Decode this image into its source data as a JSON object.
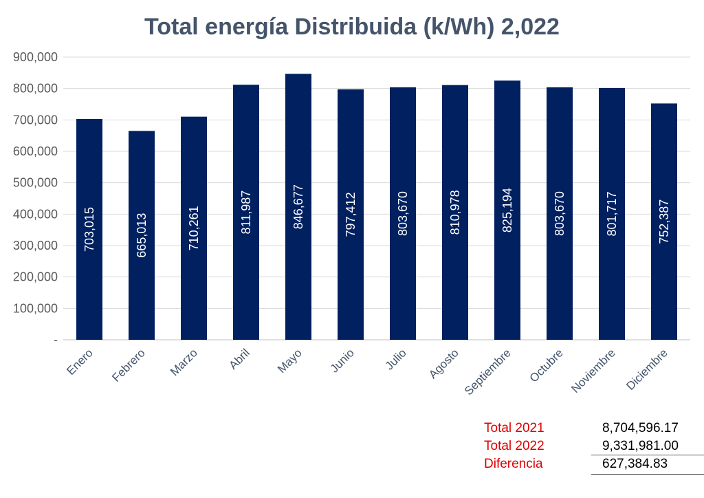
{
  "chart_data": {
    "type": "bar",
    "title": "Total energía Distribuida (k/Wh) 2,022",
    "categories": [
      "Enero",
      "Febrero",
      "Marzo",
      "Abril",
      "Mayo",
      "Junio",
      "Julio",
      "Agosto",
      "Septiembre",
      "Octubre",
      "Noviembre",
      "Diciembre"
    ],
    "values": [
      703015,
      665013,
      710261,
      811987,
      846677,
      797412,
      803670,
      810978,
      825194,
      803670,
      801717,
      752387
    ],
    "data_labels": [
      "703,015",
      "665,013",
      "710,261",
      "811,987",
      "846,677",
      "797,412",
      "803,670",
      "810,978",
      "825,194",
      "803,670",
      "801,717",
      "752,387"
    ],
    "yticks": [
      "-",
      "100,000",
      "200,000",
      "300,000",
      "400,000",
      "500,000",
      "600,000",
      "700,000",
      "800,000",
      "900,000"
    ],
    "ylim": [
      0,
      900000
    ],
    "grid": true,
    "legend": "none",
    "bar_color": "#002060",
    "xlabel": "",
    "ylabel": ""
  },
  "totals": [
    {
      "label": "Total 2021",
      "value": "8,704,596.17"
    },
    {
      "label": "Total 2022",
      "value": "9,331,981.00"
    },
    {
      "label": "Diferencia",
      "value": "627,384.83"
    }
  ],
  "colors": {
    "totals_label": "#e00000",
    "title": "#44546a",
    "grid": "#d9d9d9"
  }
}
